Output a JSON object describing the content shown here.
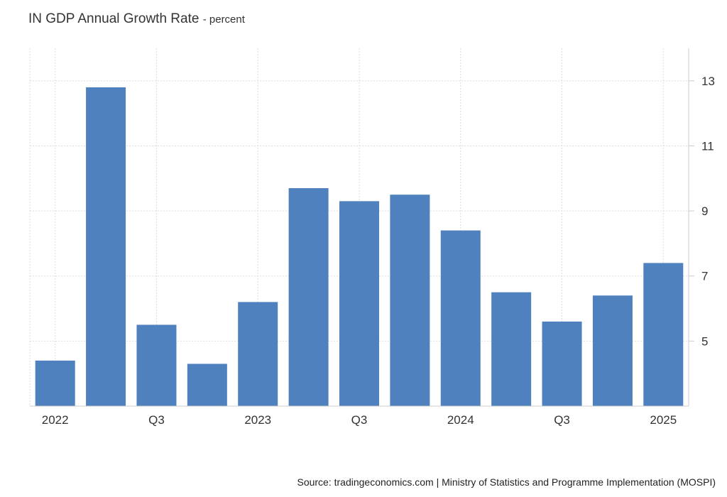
{
  "chart_data": {
    "type": "bar",
    "title": "IN GDP Annual Growth Rate",
    "unit": "- percent",
    "categories": [
      "2022 Q1",
      "2022 Q2",
      "2022 Q3",
      "2022 Q4",
      "2023 Q1",
      "2023 Q2",
      "2023 Q3",
      "2023 Q4",
      "2024 Q1",
      "2024 Q2",
      "2024 Q3",
      "2024 Q4",
      "2025 Q1"
    ],
    "x_tick_labels": [
      "2022",
      "",
      "Q3",
      "",
      "2023",
      "",
      "Q3",
      "",
      "2024",
      "",
      "Q3",
      "",
      "2025"
    ],
    "values": [
      4.4,
      12.8,
      5.5,
      4.3,
      6.2,
      9.7,
      9.3,
      9.5,
      8.4,
      6.5,
      5.6,
      6.4,
      7.4
    ],
    "y_ticks": [
      5,
      7,
      9,
      11,
      13
    ],
    "ylim": [
      3,
      14
    ],
    "xlabel": "",
    "ylabel": "",
    "grid": true,
    "bar_color": "#4e81bd",
    "source": "Source: tradingeconomics.com | Ministry of Statistics and Programme Implementation (MOSPI)"
  }
}
